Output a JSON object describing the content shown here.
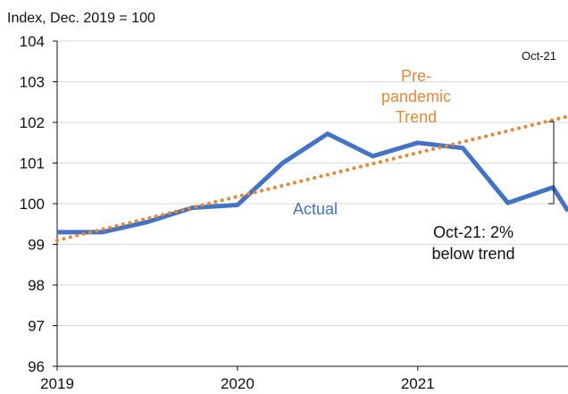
{
  "chart_data": {
    "type": "line",
    "ylabel": "Index, Dec. 2019 = 100",
    "ylim": [
      96,
      104
    ],
    "yticks": [
      96,
      97,
      98,
      99,
      100,
      101,
      102,
      103,
      104
    ],
    "xlim": [
      "2019-01",
      "2021-11"
    ],
    "xticks": [
      {
        "label": "2019",
        "at": "2019-01"
      },
      {
        "label": "2020",
        "at": "2020-01"
      },
      {
        "label": "2021",
        "at": "2021-01"
      }
    ],
    "series": [
      {
        "name": "Actual",
        "color": "#4472c4",
        "style": "solid",
        "points": [
          {
            "x": "2019-01",
            "y": 99.3
          },
          {
            "x": "2019-04",
            "y": 99.3
          },
          {
            "x": "2019-07",
            "y": 99.55
          },
          {
            "x": "2019-10",
            "y": 99.9
          },
          {
            "x": "2020-01",
            "y": 99.97
          },
          {
            "x": "2020-04",
            "y": 101.0
          },
          {
            "x": "2020-07",
            "y": 101.72
          },
          {
            "x": "2020-10",
            "y": 101.17
          },
          {
            "x": "2021-01",
            "y": 101.5
          },
          {
            "x": "2021-04",
            "y": 101.37
          },
          {
            "x": "2021-07",
            "y": 100.02
          },
          {
            "x": "2021-10",
            "y": 100.4
          },
          {
            "x": "2021-11",
            "y": 99.82
          }
        ]
      },
      {
        "name": "Pre-pandemic Trend",
        "color": "#e2883c",
        "style": "dotted",
        "points": [
          {
            "x": "2019-01",
            "y": 99.1
          },
          {
            "x": "2021-11",
            "y": 102.15
          }
        ]
      }
    ],
    "annotations": {
      "actual_label": "Actual",
      "trend_label_lines": [
        "Pre-",
        "pandemic",
        "Trend"
      ],
      "gap_label_lines": [
        "Oct-21: 2%",
        "below trend"
      ],
      "corner_label": "Oct-21"
    }
  }
}
